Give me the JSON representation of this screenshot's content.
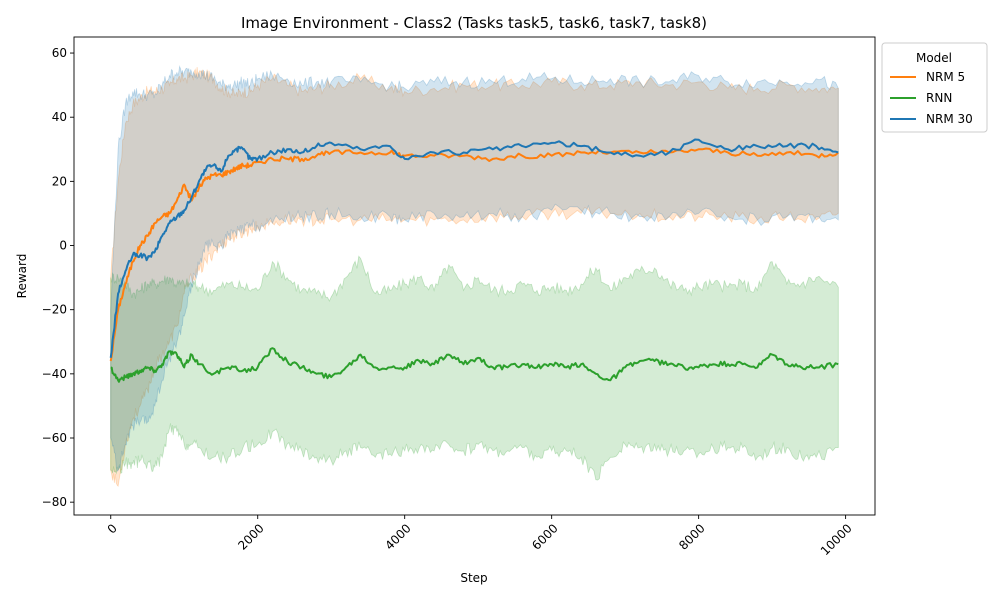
{
  "chart_data": {
    "type": "line",
    "title": "Image Environment - Class2 (Tasks task5, task6, task7, task8)",
    "xlabel": "Step",
    "ylabel": "Reward",
    "xlim": [
      -500,
      10400
    ],
    "ylim": [
      -84,
      65
    ],
    "xticks": [
      0,
      2000,
      4000,
      6000,
      8000,
      10000
    ],
    "yticks": [
      -80,
      -60,
      -40,
      -20,
      0,
      20,
      40,
      60
    ],
    "grid": false,
    "legend": {
      "title": "Model",
      "placement": "top-right, outside plot"
    },
    "series": [
      {
        "name": "NRM 5",
        "color": "#ff7f0e",
        "x": [
          0,
          100,
          200,
          300,
          400,
          500,
          600,
          700,
          800,
          900,
          1000,
          1100,
          1200,
          1300,
          1400,
          1500,
          1600,
          1700,
          1800,
          1900,
          2000,
          2200,
          2400,
          2600,
          2800,
          3000,
          3400,
          3800,
          4000,
          4400,
          4800,
          5200,
          5600,
          6000,
          6400,
          6800,
          7200,
          7600,
          8000,
          8400,
          8800,
          9200,
          9600,
          9900
        ],
        "mean": [
          -36,
          -20,
          -12,
          -5,
          0,
          3,
          7,
          9,
          10,
          14,
          19,
          14,
          18,
          21,
          22,
          22,
          23,
          24,
          25,
          25,
          26,
          27,
          27,
          27,
          28,
          29,
          29,
          29,
          28,
          28,
          28,
          27,
          28,
          28,
          29,
          29,
          29,
          29,
          30,
          29,
          28,
          29,
          28,
          29
        ],
        "upper": [
          -10,
          20,
          38,
          44,
          46,
          48,
          48,
          49,
          50,
          52,
          52,
          53,
          54,
          53,
          52,
          49,
          48,
          47,
          48,
          48,
          50,
          52,
          50,
          48,
          49,
          50,
          52,
          49,
          48,
          49,
          50,
          50,
          50,
          51,
          50,
          50,
          51,
          50,
          51,
          49,
          49,
          50,
          49,
          49
        ],
        "lower": [
          -70,
          -75,
          -62,
          -54,
          -50,
          -45,
          -38,
          -34,
          -30,
          -25,
          -15,
          -10,
          -8,
          -5,
          -2,
          0,
          2,
          3,
          4,
          5,
          6,
          7,
          8,
          8,
          8,
          8,
          8,
          8,
          8,
          8,
          8,
          9,
          9,
          10,
          10,
          10,
          10,
          9,
          9,
          9,
          8,
          9,
          8,
          10
        ]
      },
      {
        "name": "RNN",
        "color": "#2ca02c",
        "x": [
          0,
          100,
          200,
          300,
          400,
          500,
          600,
          700,
          800,
          900,
          1000,
          1100,
          1200,
          1400,
          1600,
          1800,
          2000,
          2200,
          2400,
          2600,
          2800,
          3000,
          3200,
          3400,
          3600,
          3800,
          4000,
          4200,
          4400,
          4600,
          4800,
          5000,
          5200,
          5400,
          5600,
          5800,
          6000,
          6200,
          6400,
          6600,
          6800,
          7000,
          7200,
          7400,
          7600,
          7800,
          8000,
          8200,
          8400,
          8600,
          8800,
          9000,
          9200,
          9400,
          9600,
          9900
        ],
        "mean": [
          -38,
          -42,
          -41,
          -40,
          -39,
          -38,
          -39,
          -37,
          -33,
          -34,
          -38,
          -34,
          -37,
          -40,
          -38,
          -39,
          -38,
          -32,
          -36,
          -38,
          -40,
          -41,
          -38,
          -34,
          -38,
          -38,
          -38,
          -36,
          -37,
          -34,
          -37,
          -35,
          -38,
          -38,
          -37,
          -38,
          -37,
          -38,
          -37,
          -40,
          -42,
          -38,
          -36,
          -36,
          -37,
          -38,
          -38,
          -37,
          -37,
          -37,
          -38,
          -34,
          -37,
          -38,
          -38,
          -37
        ],
        "upper": [
          -10,
          -10,
          -12,
          -15,
          -14,
          -12,
          -12,
          -11,
          -10,
          -12,
          -12,
          -12,
          -13,
          -14,
          -12,
          -13,
          -14,
          -5,
          -10,
          -14,
          -15,
          -16,
          -10,
          -4,
          -15,
          -14,
          -12,
          -10,
          -14,
          -6,
          -14,
          -10,
          -14,
          -14,
          -12,
          -14,
          -13,
          -14,
          -12,
          -7,
          -14,
          -10,
          -8,
          -7,
          -12,
          -14,
          -13,
          -12,
          -13,
          -12,
          -14,
          -5,
          -12,
          -12,
          -10,
          -13
        ],
        "lower": [
          -70,
          -70,
          -68,
          -68,
          -67,
          -68,
          -69,
          -66,
          -57,
          -58,
          -62,
          -62,
          -63,
          -66,
          -66,
          -63,
          -62,
          -58,
          -62,
          -64,
          -66,
          -67,
          -64,
          -63,
          -66,
          -65,
          -64,
          -63,
          -64,
          -62,
          -64,
          -62,
          -64,
          -64,
          -63,
          -66,
          -64,
          -64,
          -66,
          -73,
          -66,
          -62,
          -63,
          -62,
          -64,
          -64,
          -65,
          -63,
          -63,
          -63,
          -66,
          -63,
          -63,
          -66,
          -66,
          -63
        ]
      },
      {
        "name": "NRM 30",
        "color": "#1f77b4",
        "x": [
          0,
          100,
          200,
          300,
          400,
          500,
          600,
          700,
          800,
          900,
          1000,
          1100,
          1200,
          1300,
          1400,
          1500,
          1600,
          1700,
          1800,
          1900,
          2000,
          2200,
          2400,
          2600,
          2800,
          3000,
          3400,
          3800,
          4000,
          4400,
          4800,
          5200,
          5600,
          6000,
          6400,
          6800,
          7200,
          7600,
          8000,
          8400,
          8800,
          9200,
          9600,
          9900
        ],
        "mean": [
          -35,
          -15,
          -8,
          -3,
          -3,
          -4,
          -2,
          3,
          7,
          9,
          11,
          15,
          20,
          24,
          25,
          23,
          28,
          30,
          30,
          27,
          27,
          29,
          30,
          29,
          31,
          32,
          30,
          31,
          27,
          29,
          29,
          30,
          31,
          32,
          31,
          29,
          28,
          29,
          33,
          30,
          31,
          31,
          31,
          29
        ],
        "upper": [
          -20,
          30,
          44,
          48,
          47,
          47,
          47,
          50,
          53,
          54,
          54,
          54,
          54,
          53,
          52,
          50,
          50,
          50,
          51,
          50,
          52,
          53,
          52,
          50,
          51,
          51,
          51,
          50,
          49,
          51,
          51,
          51,
          52,
          52,
          51,
          52,
          51,
          51,
          53,
          51,
          51,
          51,
          52,
          49
        ],
        "lower": [
          -60,
          -70,
          -62,
          -56,
          -55,
          -55,
          -50,
          -42,
          -35,
          -30,
          -22,
          -12,
          -6,
          0,
          0,
          0,
          3,
          4,
          5,
          6,
          6,
          7,
          9,
          9,
          9,
          10,
          9,
          9,
          8,
          10,
          9,
          10,
          9,
          11,
          11,
          10,
          9,
          9,
          10,
          9,
          8,
          9,
          9,
          8
        ]
      }
    ]
  }
}
